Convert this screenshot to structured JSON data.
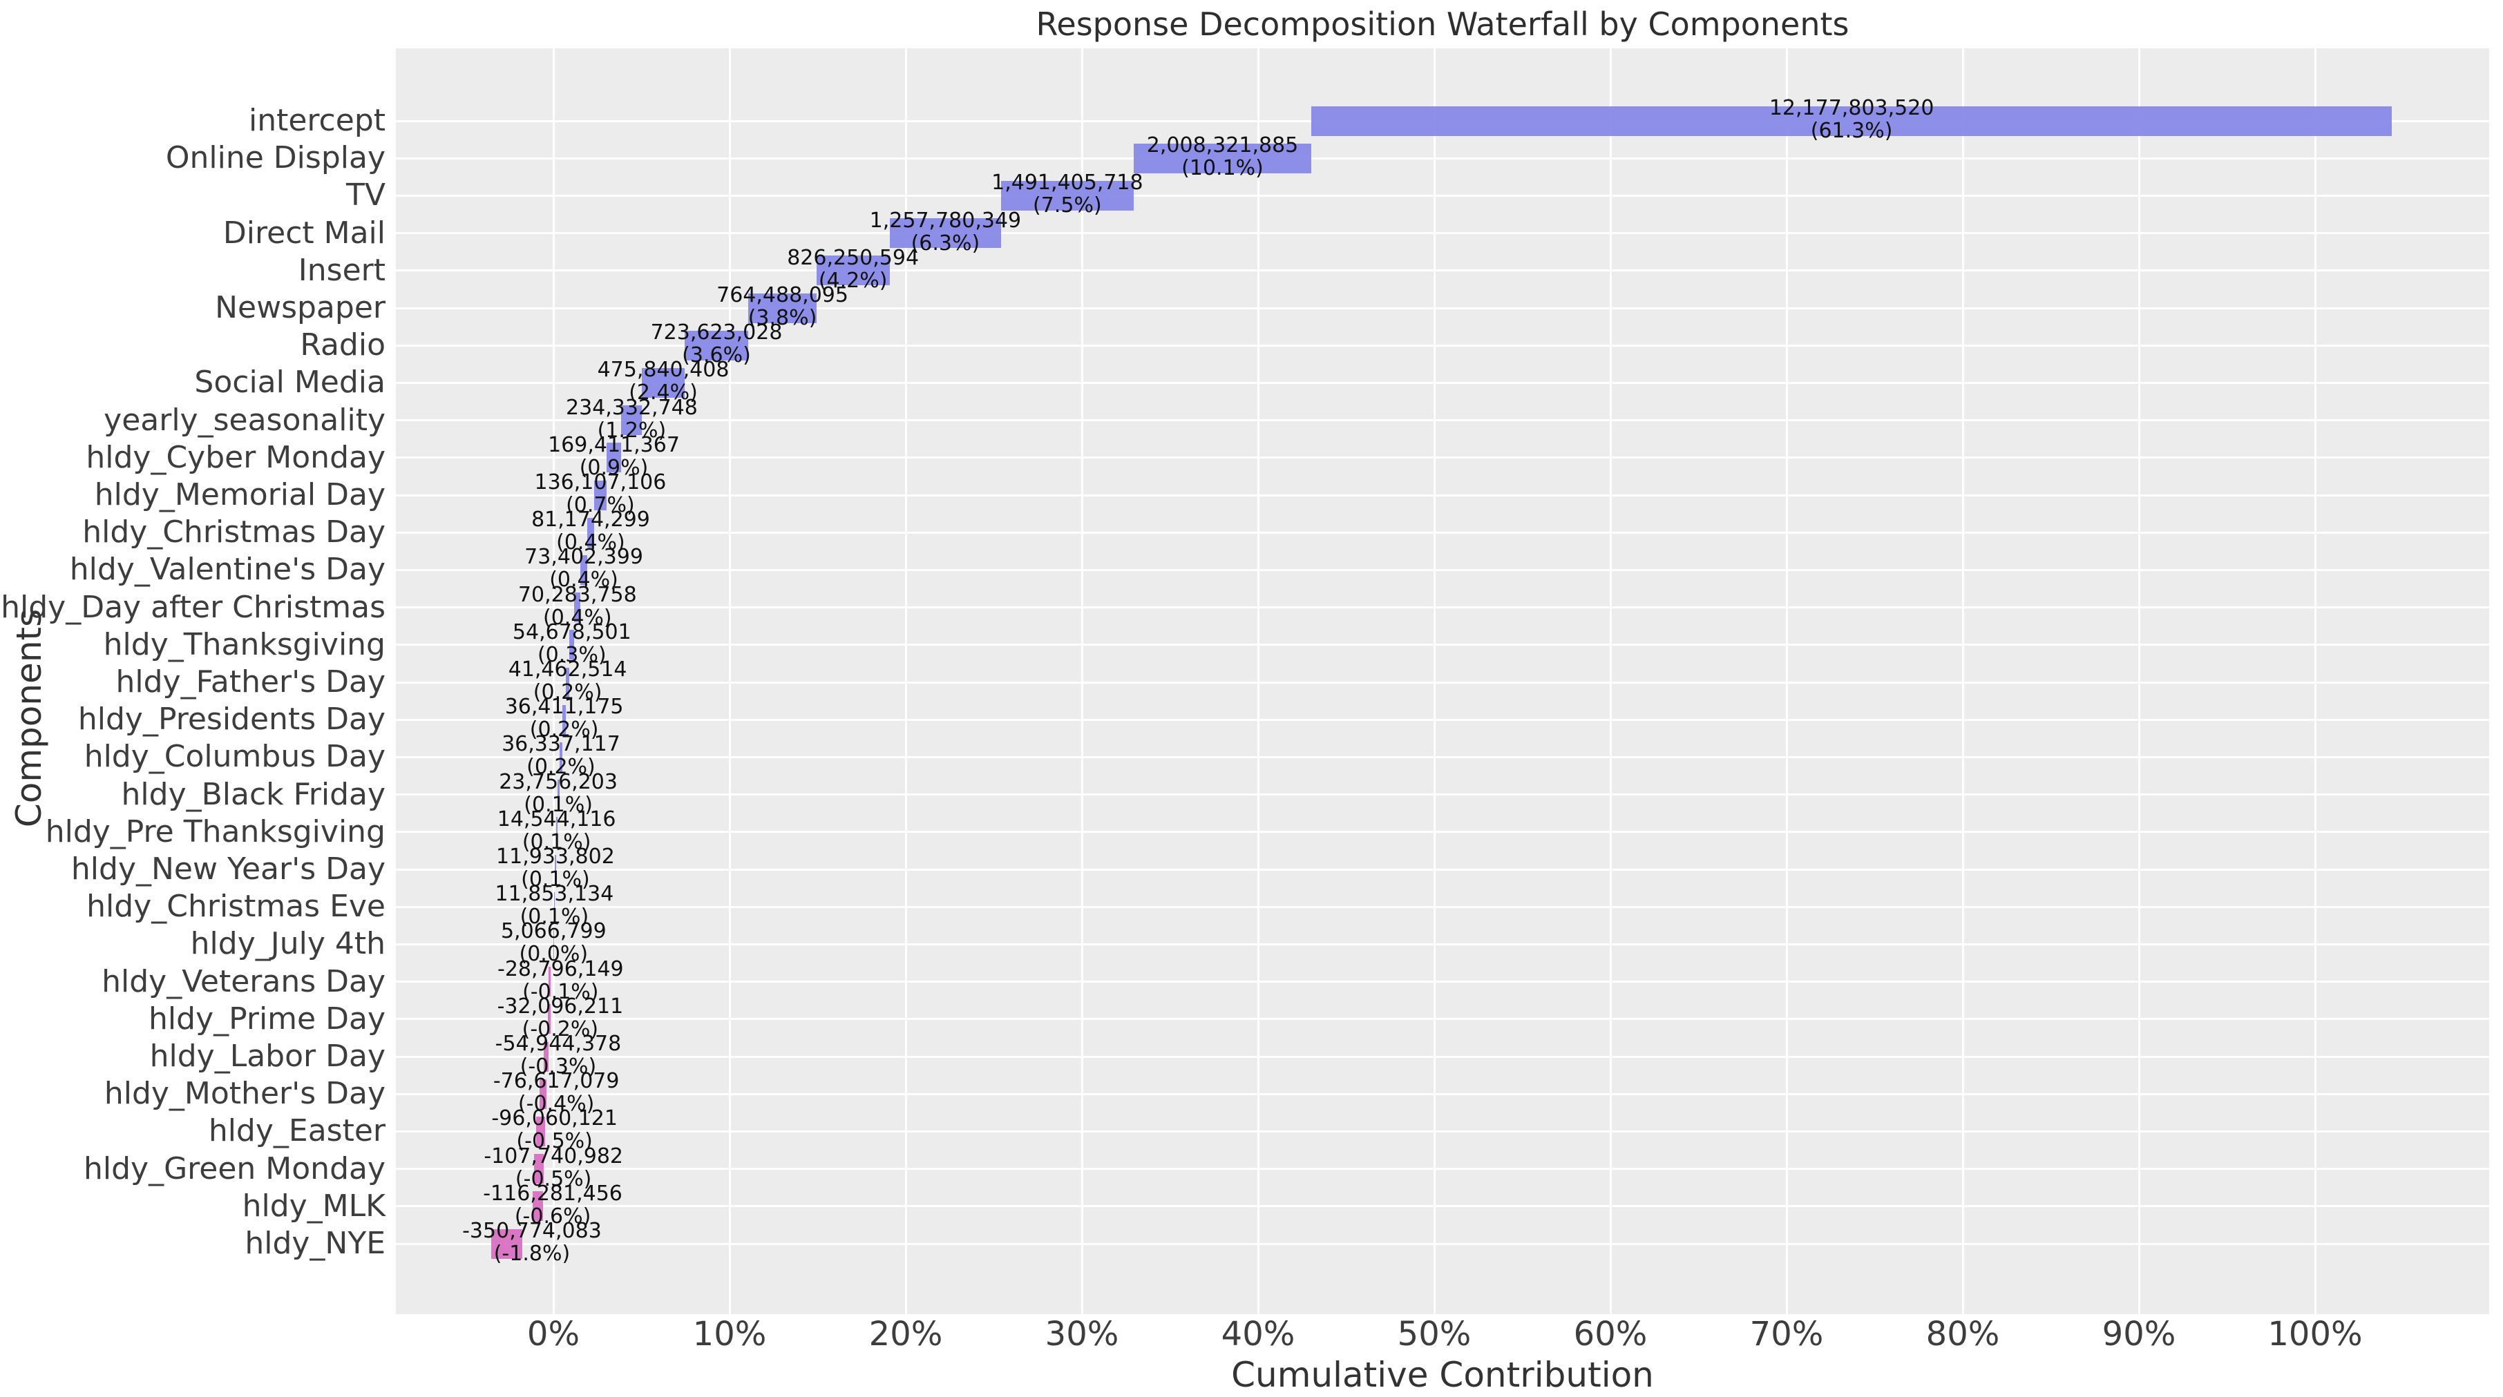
{
  "chart_data": {
    "type": "bar",
    "subtype": "horizontal-waterfall",
    "title": "Response Decomposition Waterfall by Components",
    "xlabel": "Cumulative Contribution",
    "ylabel": "Components",
    "legend": null,
    "grid": true,
    "x_tick_labels": [
      "0%",
      "10%",
      "20%",
      "30%",
      "40%",
      "50%",
      "60%",
      "70%",
      "80%",
      "90%",
      "100%"
    ],
    "x_tick_percents": [
      0,
      10,
      20,
      30,
      40,
      50,
      60,
      70,
      80,
      90,
      100
    ],
    "xlim_percent": [
      -8.9,
      109.9
    ],
    "total": 19862958176,
    "colors": {
      "positive_bar": "#8889e8",
      "negative_bar": "#d971c2",
      "plot_background": "#ececec",
      "gridline": "#ffffff",
      "title_text": "#2e2e2e",
      "tick_text": "#3d3d3d",
      "annotation_text": "#111111"
    },
    "items": [
      {
        "label": "intercept",
        "value": 12177803520,
        "value_label": "12,177,803,520",
        "pct_label": "(61.3%)"
      },
      {
        "label": "Online Display",
        "value": 2008321885,
        "value_label": "2,008,321,885",
        "pct_label": "(10.1%)"
      },
      {
        "label": "TV",
        "value": 1491405718,
        "value_label": "1,491,405,718",
        "pct_label": "(7.5%)"
      },
      {
        "label": "Direct Mail",
        "value": 1257780349,
        "value_label": "1,257,780,349",
        "pct_label": "(6.3%)"
      },
      {
        "label": "Insert",
        "value": 826250594,
        "value_label": "826,250,594",
        "pct_label": "(4.2%)"
      },
      {
        "label": "Newspaper",
        "value": 764488095,
        "value_label": "764,488,095",
        "pct_label": "(3.8%)"
      },
      {
        "label": "Radio",
        "value": 723623028,
        "value_label": "723,623,028",
        "pct_label": "(3.6%)"
      },
      {
        "label": "Social Media",
        "value": 475840408,
        "value_label": "475,840,408",
        "pct_label": "(2.4%)"
      },
      {
        "label": "yearly_seasonality",
        "value": 234332748,
        "value_label": "234,332,748",
        "pct_label": "(1.2%)"
      },
      {
        "label": "hldy_Cyber Monday",
        "value": 169411367,
        "value_label": "169,411,367",
        "pct_label": "(0.9%)"
      },
      {
        "label": "hldy_Memorial Day",
        "value": 136107106,
        "value_label": "136,107,106",
        "pct_label": "(0.7%)"
      },
      {
        "label": "hldy_Christmas Day",
        "value": 81174299,
        "value_label": "81,174,299",
        "pct_label": "(0.4%)"
      },
      {
        "label": "hldy_Valentine's Day",
        "value": 73402399,
        "value_label": "73,402,399",
        "pct_label": "(0.4%)"
      },
      {
        "label": "hldy_Day after Christmas",
        "value": 70283758,
        "value_label": "70,283,758",
        "pct_label": "(0.4%)"
      },
      {
        "label": "hldy_Thanksgiving",
        "value": 54678501,
        "value_label": "54,678,501",
        "pct_label": "(0.3%)"
      },
      {
        "label": "hldy_Father's Day",
        "value": 41462514,
        "value_label": "41,462,514",
        "pct_label": "(0.2%)"
      },
      {
        "label": "hldy_Presidents Day",
        "value": 36411175,
        "value_label": "36,411,175",
        "pct_label": "(0.2%)"
      },
      {
        "label": "hldy_Columbus Day",
        "value": 36337117,
        "value_label": "36,337,117",
        "pct_label": "(0.2%)"
      },
      {
        "label": "hldy_Black Friday",
        "value": 23756203,
        "value_label": "23,756,203",
        "pct_label": "(0.1%)"
      },
      {
        "label": "hldy_Pre Thanksgiving",
        "value": 14544116,
        "value_label": "14,544,116",
        "pct_label": "(0.1%)"
      },
      {
        "label": "hldy_New Year's Day",
        "value": 11933802,
        "value_label": "11,933,802",
        "pct_label": "(0.1%)"
      },
      {
        "label": "hldy_Christmas Eve",
        "value": 11853134,
        "value_label": "11,853,134",
        "pct_label": "(0.1%)"
      },
      {
        "label": "hldy_July 4th",
        "value": 5066799,
        "value_label": "5,066,799",
        "pct_label": "(0.0%)"
      },
      {
        "label": "hldy_Veterans Day",
        "value": -28796149,
        "value_label": "-28,796,149",
        "pct_label": "(-0.1%)"
      },
      {
        "label": "hldy_Prime Day",
        "value": -32096211,
        "value_label": "-32,096,211",
        "pct_label": "(-0.2%)"
      },
      {
        "label": "hldy_Labor Day",
        "value": -54944378,
        "value_label": "-54,944,378",
        "pct_label": "(-0.3%)"
      },
      {
        "label": "hldy_Mother's Day",
        "value": -76617079,
        "value_label": "-76,617,079",
        "pct_label": "(-0.4%)"
      },
      {
        "label": "hldy_Easter",
        "value": -96060121,
        "value_label": "-96,060,121",
        "pct_label": "(-0.5%)"
      },
      {
        "label": "hldy_Green Monday",
        "value": -107740982,
        "value_label": "-107,740,982",
        "pct_label": "(-0.5%)"
      },
      {
        "label": "hldy_MLK",
        "value": -116281456,
        "value_label": "-116,281,456",
        "pct_label": "(-0.6%)"
      },
      {
        "label": "hldy_NYE",
        "value": -350774083,
        "value_label": "-350,774,083",
        "pct_label": "(-1.8%)"
      }
    ]
  }
}
